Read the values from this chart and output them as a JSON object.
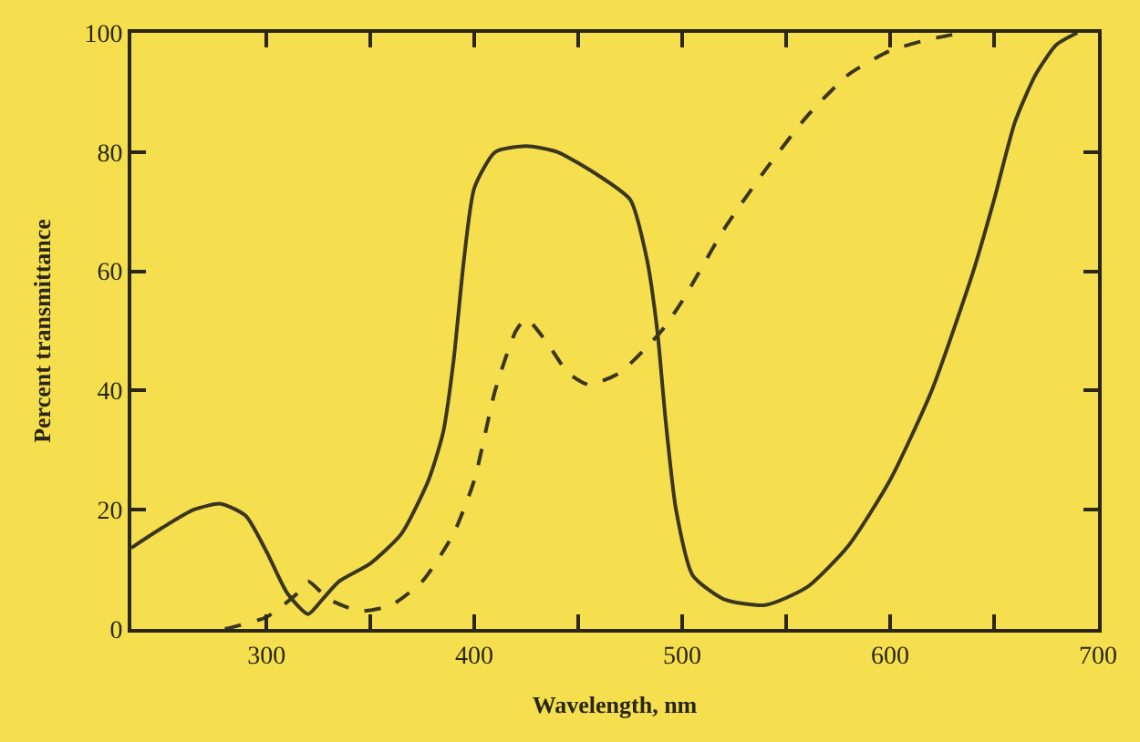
{
  "chart_data": {
    "type": "line",
    "xlabel": "Wavelength, nm",
    "ylabel": "Percent transmittance",
    "xlim": [
      235,
      700
    ],
    "ylim": [
      0,
      100
    ],
    "xticks": [
      300,
      {
        "value": 350,
        "label": null
      },
      400,
      {
        "value": 450,
        "label": null
      },
      500,
      {
        "value": 550,
        "label": null
      },
      600,
      {
        "value": 650,
        "label": null
      },
      700
    ],
    "yticks": [
      0,
      20,
      40,
      60,
      80,
      100
    ],
    "grid": false,
    "marker": "none",
    "series": [
      {
        "color": "#3a3520",
        "line_style": "solid",
        "x": [
          235,
          250,
          265,
          278,
          290,
          300,
          310,
          320,
          327,
          335,
          350,
          365,
          378,
          385,
          390,
          395,
          400,
          410,
          425,
          440,
          460,
          475,
          483,
          488,
          492,
          497,
          505,
          520,
          540,
          560,
          580,
          600,
          620,
          640,
          650,
          660,
          670,
          680,
          690
        ],
        "values": [
          13.6,
          17,
          20,
          21,
          19,
          13,
          6,
          2.5,
          5,
          8,
          11,
          16,
          25,
          33,
          45,
          62,
          74,
          80,
          81,
          80,
          76,
          72,
          62,
          50,
          35,
          20,
          9,
          5,
          4,
          7,
          14,
          25,
          40,
          60,
          72,
          85,
          93,
          98,
          100
        ]
      },
      {
        "color": "#3a3520",
        "line_style": "dashed",
        "x": [
          280,
          300,
          315,
          320,
          330,
          345,
          360,
          375,
          390,
          400,
          410,
          420,
          425,
          435,
          445,
          455,
          470,
          490,
          500,
          520,
          540,
          560,
          580,
          600,
          620,
          635
        ],
        "values": [
          0,
          2,
          6,
          8,
          5,
          3,
          4,
          8,
          16,
          25,
          40,
          50,
          52,
          48,
          43,
          41,
          43,
          50,
          55,
          67,
          77,
          86,
          93,
          97,
          99,
          100
        ]
      }
    ]
  }
}
